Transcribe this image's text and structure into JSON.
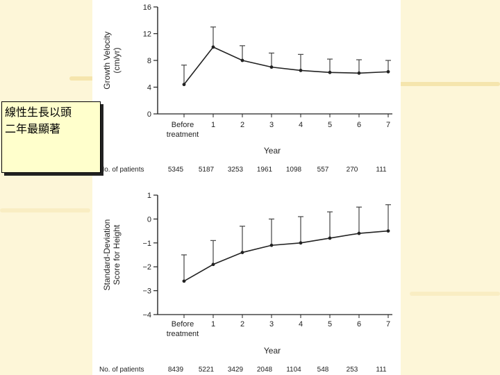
{
  "note": {
    "line1": "線性生長以頭",
    "line2": "二年最顯著"
  },
  "chart_data": [
    {
      "type": "line",
      "ylabel": "Growth Velocity (cm/yr)",
      "xlabel": "Year",
      "categories": [
        "Before treatment",
        "1",
        "2",
        "3",
        "4",
        "5",
        "6",
        "7"
      ],
      "category_lines": [
        [
          "Before",
          "treatment"
        ],
        [
          "1"
        ],
        [
          "2"
        ],
        [
          "3"
        ],
        [
          "4"
        ],
        [
          "5"
        ],
        [
          "6"
        ],
        [
          "7"
        ]
      ],
      "values": [
        4.4,
        10.0,
        8.0,
        7.0,
        6.5,
        6.2,
        6.1,
        6.3
      ],
      "error_upper": [
        7.3,
        13.0,
        10.2,
        9.1,
        8.9,
        8.2,
        8.1,
        8.0
      ],
      "ylim": [
        0,
        16
      ],
      "yticks": [
        "0",
        "4",
        "8",
        "12",
        "16"
      ],
      "patients_label": "No. of patients",
      "patients": [
        "5345",
        "5187",
        "3253",
        "1961",
        "1098",
        "557",
        "270",
        "111"
      ]
    },
    {
      "type": "line",
      "ylabel": "Standard-Deviation Score for Height",
      "xlabel": "Year",
      "categories": [
        "Before treatment",
        "1",
        "2",
        "3",
        "4",
        "5",
        "6",
        "7"
      ],
      "category_lines": [
        [
          "Before",
          "treatment"
        ],
        [
          "1"
        ],
        [
          "2"
        ],
        [
          "3"
        ],
        [
          "4"
        ],
        [
          "5"
        ],
        [
          "6"
        ],
        [
          "7"
        ]
      ],
      "values": [
        -2.6,
        -1.9,
        -1.4,
        -1.1,
        -1.0,
        -0.8,
        -0.6,
        -0.5
      ],
      "error_upper": [
        -1.5,
        -0.9,
        -0.3,
        0.0,
        0.1,
        0.3,
        0.5,
        0.6
      ],
      "ylim": [
        -4,
        1
      ],
      "yticks": [
        "-4",
        "-3",
        "-2",
        "-1",
        "0",
        "1"
      ],
      "patients_label": "No. of patients",
      "patients": [
        "8439",
        "5221",
        "3429",
        "2048",
        "1104",
        "548",
        "253",
        "111"
      ]
    }
  ]
}
